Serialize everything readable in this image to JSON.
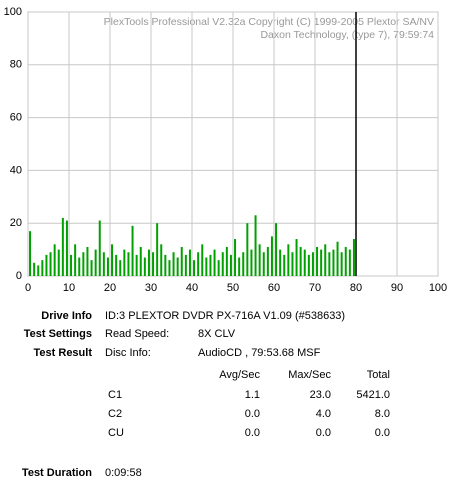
{
  "chart_data": {
    "type": "bar",
    "watermark": [
      "PlexTools Professional V2.32a Copyright (C) 1999-2005 Plextor SA/NV",
      "Daxon Technology, (type 7), 79:59:74"
    ],
    "x": [
      0.5,
      1.5,
      2.5,
      3.5,
      4.5,
      5.5,
      6.5,
      7.5,
      8.5,
      9.5,
      10.5,
      11.5,
      12.5,
      13.5,
      14.5,
      15.5,
      16.5,
      17.5,
      18.5,
      19.5,
      20.5,
      21.5,
      22.5,
      23.5,
      24.5,
      25.5,
      26.5,
      27.5,
      28.5,
      29.5,
      30.5,
      31.5,
      32.5,
      33.5,
      34.5,
      35.5,
      36.5,
      37.5,
      38.5,
      39.5,
      40.5,
      41.5,
      42.5,
      43.5,
      44.5,
      45.5,
      46.5,
      47.5,
      48.5,
      49.5,
      50.5,
      51.5,
      52.5,
      53.5,
      54.5,
      55.5,
      56.5,
      57.5,
      58.5,
      59.5,
      60.5,
      61.5,
      62.5,
      63.5,
      64.5,
      65.5,
      66.5,
      67.5,
      68.5,
      69.5,
      70.5,
      71.5,
      72.5,
      73.5,
      74.5,
      75.5,
      76.5,
      77.5,
      78.5,
      79.5
    ],
    "values": [
      17,
      5,
      4,
      6,
      8,
      9,
      12,
      10,
      22,
      21,
      8,
      12,
      7,
      9,
      11,
      6,
      10,
      21,
      9,
      7,
      12,
      8,
      6,
      10,
      9,
      19,
      8,
      11,
      7,
      10,
      9,
      20,
      12,
      8,
      6,
      9,
      7,
      11,
      8,
      10,
      6,
      9,
      12,
      7,
      8,
      10,
      6,
      9,
      11,
      8,
      14,
      7,
      9,
      20,
      10,
      23,
      12,
      9,
      11,
      15,
      20,
      10,
      8,
      12,
      9,
      14,
      11,
      10,
      8,
      9,
      11,
      10,
      12,
      9,
      10,
      13,
      9,
      11,
      10,
      14
    ],
    "color": "#00a000",
    "end_marker": 80,
    "xlim": [
      0,
      100
    ],
    "xticks": [
      0,
      10,
      20,
      30,
      40,
      50,
      60,
      70,
      80,
      90,
      100
    ],
    "ylim": [
      0,
      100
    ],
    "yticks": [
      0,
      20,
      40,
      60,
      80,
      100
    ],
    "grid": true
  },
  "info": {
    "drive_label": "Drive Info",
    "drive_value": "ID:3 PLEXTOR DVDR PX-716A V1.09 (#538633)",
    "settings_label": "Test Settings",
    "speed_label": "Read Speed:",
    "speed_value": "8X CLV",
    "result_label": "Test Result",
    "disc_label": "Disc Info:",
    "disc_value": "AudioCD , 79:53.68 MSF",
    "headers": [
      "Avg/Sec",
      "Max/Sec",
      "Total"
    ],
    "rows": [
      [
        "C1",
        "1.1",
        "23.0",
        "5421.0"
      ],
      [
        "C2",
        "0.0",
        "4.0",
        "8.0"
      ],
      [
        "CU",
        "0.0",
        "0.0",
        "0.0"
      ]
    ],
    "duration_label": "Test Duration",
    "duration_value": "0:09:58"
  }
}
